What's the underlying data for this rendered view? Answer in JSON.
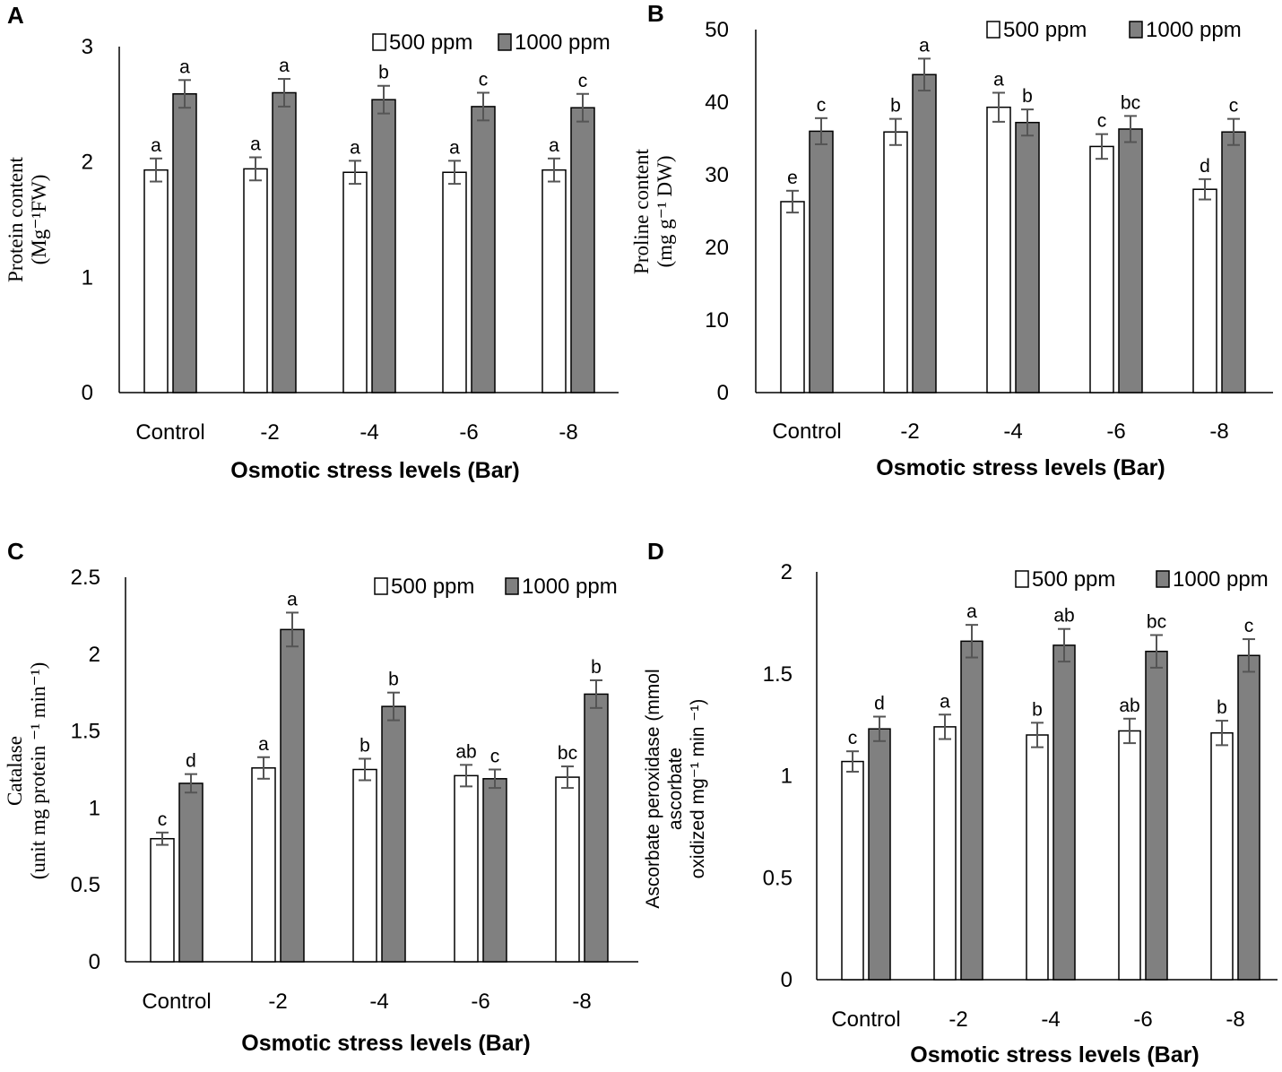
{
  "chart_data": [
    {
      "id": "A",
      "panel_label": "A",
      "type": "bar",
      "categories": [
        "Control",
        "-2",
        "-4",
        "-6",
        "-8"
      ],
      "series": [
        {
          "name": "500 ppm",
          "color": "#ffffff",
          "values": [
            1.93,
            1.94,
            1.91,
            1.91,
            1.93
          ],
          "errors": [
            0.1,
            0.1,
            0.1,
            0.1,
            0.1
          ],
          "letters": [
            "a",
            "a",
            "a",
            "a",
            "a"
          ]
        },
        {
          "name": "1000 ppm",
          "color": "#808080",
          "values": [
            2.59,
            2.6,
            2.54,
            2.48,
            2.47
          ],
          "errors": [
            0.12,
            0.12,
            0.12,
            0.12,
            0.12
          ],
          "letters": [
            "a",
            "a",
            "b",
            "c",
            "c"
          ]
        }
      ],
      "title": "",
      "xlabel": "Osmotic stress levels (Bar)",
      "ylabel_lines": [
        "Protein content",
        "(Mg⁻¹FW)"
      ],
      "ylim": [
        0,
        3
      ],
      "yticks": [
        "0",
        "1",
        "2",
        "3"
      ],
      "legend_position": "top-right"
    },
    {
      "id": "B",
      "panel_label": "B",
      "type": "bar",
      "categories": [
        "Control",
        "-2",
        "-4",
        "-6",
        "-8"
      ],
      "series": [
        {
          "name": "500 ppm",
          "color": "#ffffff",
          "values": [
            26.3,
            35.9,
            39.3,
            33.9,
            28.0
          ],
          "errors": [
            1.5,
            1.8,
            2.0,
            1.7,
            1.4
          ],
          "letters": [
            "e",
            "b",
            "a",
            "c",
            "d"
          ]
        },
        {
          "name": "1000 ppm",
          "color": "#808080",
          "values": [
            36.0,
            43.8,
            37.2,
            36.3,
            35.9
          ],
          "errors": [
            1.8,
            2.2,
            1.8,
            1.8,
            1.8
          ],
          "letters": [
            "c",
            "a",
            "b",
            "bc",
            "c"
          ]
        }
      ],
      "title": "",
      "xlabel": "Osmotic stress levels (Bar)",
      "ylabel_lines": [
        "Proline content",
        "(mg g⁻¹ DW)"
      ],
      "ylim": [
        0,
        50
      ],
      "yticks": [
        "0",
        "10",
        "20",
        "30",
        "40",
        "50"
      ],
      "legend_position": "top-right"
    },
    {
      "id": "C",
      "panel_label": "C",
      "type": "bar",
      "categories": [
        "Control",
        "-2",
        "-4",
        "-6",
        "-8"
      ],
      "series": [
        {
          "name": "500 ppm",
          "color": "#ffffff",
          "values": [
            0.8,
            1.26,
            1.25,
            1.21,
            1.2
          ],
          "errors": [
            0.04,
            0.07,
            0.07,
            0.07,
            0.07
          ],
          "letters": [
            "c",
            "a",
            "b",
            "ab",
            "bc"
          ]
        },
        {
          "name": "1000 ppm",
          "color": "#808080",
          "values": [
            1.16,
            2.16,
            1.66,
            1.19,
            1.74
          ],
          "errors": [
            0.06,
            0.11,
            0.09,
            0.06,
            0.09
          ],
          "letters": [
            "d",
            "a",
            "b",
            "c",
            "b"
          ]
        }
      ],
      "title": "",
      "xlabel": "Osmotic stress levels (Bar)",
      "ylabel_lines": [
        "Catalase",
        "(unit mg protein ⁻¹ min⁻¹)"
      ],
      "ylim": [
        0,
        2.5
      ],
      "yticks": [
        "0",
        "0.5",
        "1",
        "1.5",
        "2",
        "2.5"
      ],
      "legend_position": "top-right"
    },
    {
      "id": "D",
      "panel_label": "D",
      "type": "bar",
      "categories": [
        "Control",
        "-2",
        "-4",
        "-6",
        "-8"
      ],
      "series": [
        {
          "name": "500 ppm",
          "color": "#ffffff",
          "values": [
            1.07,
            1.24,
            1.2,
            1.22,
            1.21
          ],
          "errors": [
            0.05,
            0.06,
            0.06,
            0.06,
            0.06
          ],
          "letters": [
            "c",
            "a",
            "b",
            "ab",
            "b"
          ]
        },
        {
          "name": "1000 ppm",
          "color": "#808080",
          "values": [
            1.23,
            1.66,
            1.64,
            1.61,
            1.59
          ],
          "errors": [
            0.06,
            0.08,
            0.08,
            0.08,
            0.08
          ],
          "letters": [
            "d",
            "a",
            "ab",
            "bc",
            "c"
          ]
        }
      ],
      "title": "",
      "xlabel": "Osmotic stress levels (Bar)",
      "ylabel_lines": [
        "Ascorbate peroxidase (mmol",
        "ascorbate",
        "oxidized mg⁻¹ min ⁻¹)"
      ],
      "ylim": [
        0,
        2
      ],
      "yticks": [
        "0",
        "0.5",
        "1",
        "1.5",
        "2"
      ],
      "legend_position": "top-right"
    }
  ]
}
